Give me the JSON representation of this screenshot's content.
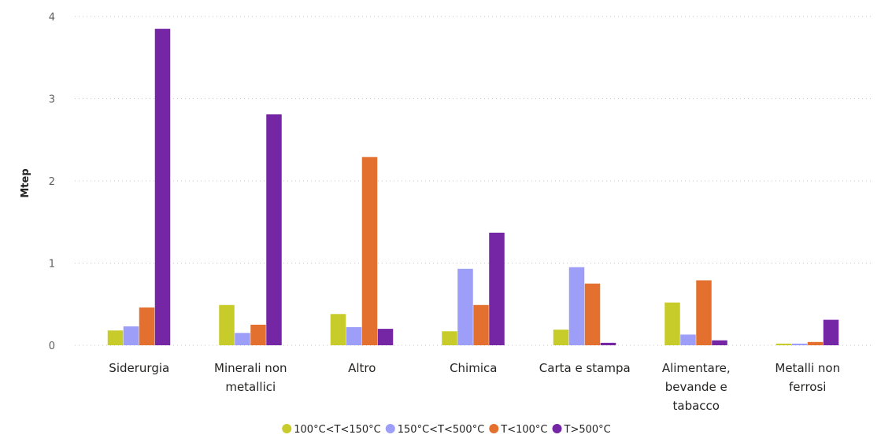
{
  "chart_data": {
    "type": "bar",
    "title": "",
    "xlabel": "",
    "ylabel": "Mtep",
    "ylim": [
      0,
      4
    ],
    "yticks": [
      "0",
      "1",
      "2",
      "3",
      "4"
    ],
    "grid": true,
    "legend_position": "bottom",
    "categories": [
      [
        "Siderurgia"
      ],
      [
        "Minerali non",
        "metallici"
      ],
      [
        "Altro"
      ],
      [
        "Chimica"
      ],
      [
        "Carta e stampa"
      ],
      [
        "Alimentare,",
        "bevande e",
        "tabacco"
      ],
      [
        "Metalli non",
        "ferrosi"
      ]
    ],
    "series": [
      {
        "name": "100°C<T<150°C",
        "color": "#c8cc2a",
        "values": [
          0.18,
          0.49,
          0.38,
          0.17,
          0.19,
          0.52,
          0.02
        ]
      },
      {
        "name": "150°C<T<500°C",
        "color": "#9c9ef7",
        "values": [
          0.23,
          0.15,
          0.22,
          0.93,
          0.95,
          0.13,
          0.02
        ]
      },
      {
        "name": "T<100°C",
        "color": "#e3702e",
        "values": [
          0.46,
          0.25,
          2.29,
          0.49,
          0.75,
          0.79,
          0.04
        ]
      },
      {
        "name": "T>500°C",
        "color": "#7526a4",
        "values": [
          3.85,
          2.81,
          0.2,
          1.37,
          0.03,
          0.06,
          0.31
        ]
      }
    ]
  }
}
